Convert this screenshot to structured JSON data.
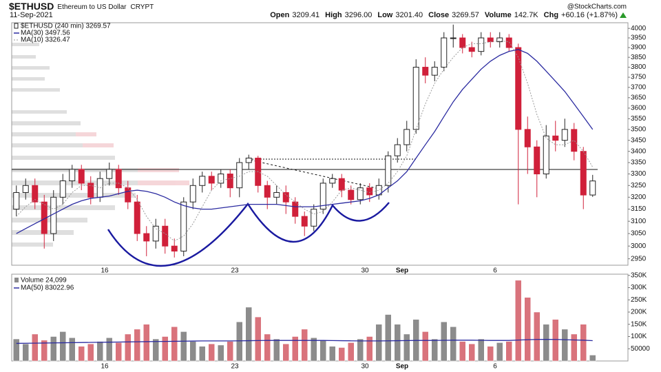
{
  "header": {
    "symbol": "$ETHUSD",
    "name": "Ethereum to US Dollar",
    "exchange": "CRYPT",
    "date": "11-Sep-2021",
    "source": "@StockCharts.com",
    "quote": [
      {
        "label": "Open",
        "value": "3209.41"
      },
      {
        "label": "High",
        "value": "3296.00"
      },
      {
        "label": "Low",
        "value": "3201.40"
      },
      {
        "label": "Close",
        "value": "3269.57"
      },
      {
        "label": "Volume",
        "value": "142.7K"
      },
      {
        "label": "Chg",
        "value": "+60.16 (+1.87%)"
      }
    ]
  },
  "chart_data": {
    "type": "candlestick",
    "legend": "$ETHUSD (240 min) 3269.57",
    "categories": [
      null,
      null,
      null,
      null,
      null,
      null,
      null,
      null,
      null,
      null,
      "16",
      null,
      null,
      null,
      null,
      null,
      null,
      null,
      null,
      null,
      null,
      null,
      null,
      null,
      "23",
      null,
      null,
      null,
      null,
      null,
      null,
      null,
      null,
      null,
      null,
      null,
      null,
      null,
      "30",
      null,
      null,
      null,
      "Sep",
      null,
      null,
      null,
      null,
      null,
      null,
      null,
      null,
      null,
      "6",
      null,
      null,
      null,
      null,
      null,
      null,
      null,
      null,
      null,
      null
    ],
    "open": [
      3150,
      3220,
      3250,
      3180,
      3050,
      3200,
      3270,
      3320,
      3260,
      3200,
      3280,
      3320,
      3240,
      3180,
      3050,
      3020,
      3080,
      3000,
      2980,
      3180,
      3250,
      3290,
      3260,
      3300,
      3240,
      3350,
      3370,
      3250,
      3200,
      3220,
      3180,
      3120,
      3080,
      3150,
      3260,
      3280,
      3230,
      3190,
      3240,
      3210,
      3250,
      3380,
      3430,
      3500,
      3800,
      3760,
      3800,
      3950,
      3950,
      3900,
      3880,
      3950,
      3930,
      3950,
      3900,
      3500,
      3420,
      3300,
      3470,
      3450,
      3500,
      3400,
      3209.41
    ],
    "high": [
      3250,
      3280,
      3280,
      3210,
      3230,
      3300,
      3340,
      3340,
      3290,
      3310,
      3350,
      3340,
      3270,
      3210,
      3080,
      3110,
      3110,
      3030,
      3200,
      3280,
      3310,
      3310,
      3320,
      3320,
      3370,
      3385,
      3380,
      3270,
      3250,
      3250,
      3200,
      3140,
      3170,
      3280,
      3300,
      3300,
      3250,
      3260,
      3260,
      3280,
      3400,
      3460,
      3540,
      3840,
      3850,
      3830,
      3980,
      4020,
      3970,
      3930,
      3980,
      3980,
      3980,
      3970,
      3920,
      3560,
      3450,
      3520,
      3540,
      3550,
      3530,
      3420,
      3296
    ],
    "low": [
      3120,
      3190,
      3150,
      2990,
      3020,
      3170,
      3240,
      3230,
      3170,
      3180,
      3250,
      3210,
      3150,
      3020,
      2960,
      2990,
      2970,
      2955,
      2960,
      3150,
      3220,
      3230,
      3240,
      3200,
      3200,
      3320,
      3220,
      3150,
      3170,
      3130,
      3090,
      3040,
      3060,
      3130,
      3240,
      3200,
      3170,
      3170,
      3180,
      3190,
      3220,
      3350,
      3400,
      3480,
      3720,
      3730,
      3780,
      3900,
      3870,
      3850,
      3860,
      3900,
      3900,
      3880,
      3170,
      3300,
      3200,
      3280,
      3400,
      3420,
      3360,
      3150,
      3201.4
    ],
    "close": [
      3220,
      3250,
      3180,
      3050,
      3200,
      3270,
      3320,
      3260,
      3200,
      3280,
      3320,
      3240,
      3180,
      3050,
      3020,
      3080,
      3000,
      2980,
      3180,
      3250,
      3290,
      3260,
      3300,
      3240,
      3350,
      3370,
      3250,
      3200,
      3220,
      3180,
      3120,
      3080,
      3150,
      3260,
      3280,
      3230,
      3190,
      3240,
      3210,
      3250,
      3380,
      3430,
      3500,
      3800,
      3760,
      3800,
      3950,
      3950,
      3900,
      3880,
      3950,
      3930,
      3950,
      3900,
      3500,
      3420,
      3300,
      3470,
      3450,
      3500,
      3400,
      3209.41,
      3269.57
    ],
    "up_color": "#ffffff",
    "down_color": "#d0203a",
    "log_scale": true,
    "ylim": [
      2925,
      4030
    ],
    "yticks": [
      2950,
      3000,
      3050,
      3100,
      3150,
      3200,
      3250,
      3300,
      3350,
      3400,
      3450,
      3500,
      3550,
      3600,
      3650,
      3700,
      3750,
      3800,
      3850,
      3900,
      3950,
      4000
    ],
    "overlays": [
      {
        "name": "MA(30) 3497.56",
        "color": "#2a2aa0",
        "dashed": false,
        "values": [
          3050,
          3070,
          3090,
          3110,
          3130,
          3150,
          3170,
          3185,
          3195,
          3200,
          3205,
          3215,
          3225,
          3230,
          3225,
          3215,
          3200,
          3180,
          3165,
          3155,
          3150,
          3150,
          3155,
          3160,
          3165,
          3170,
          3170,
          3170,
          3170,
          3165,
          3160,
          3160,
          3160,
          3165,
          3170,
          3175,
          3180,
          3185,
          3195,
          3210,
          3240,
          3270,
          3310,
          3370,
          3430,
          3490,
          3560,
          3630,
          3690,
          3740,
          3790,
          3830,
          3860,
          3880,
          3890,
          3870,
          3830,
          3780,
          3730,
          3680,
          3620,
          3560,
          3500
        ]
      },
      {
        "name": "MA(10) 3326.47",
        "color": "#999999",
        "dashed": true,
        "values": [
          3120,
          3160,
          3190,
          3170,
          3150,
          3170,
          3220,
          3250,
          3250,
          3240,
          3260,
          3260,
          3240,
          3190,
          3120,
          3070,
          3050,
          3020,
          3040,
          3090,
          3160,
          3230,
          3270,
          3280,
          3290,
          3310,
          3310,
          3290,
          3250,
          3210,
          3180,
          3150,
          3130,
          3140,
          3180,
          3230,
          3240,
          3230,
          3220,
          3230,
          3260,
          3310,
          3380,
          3500,
          3620,
          3720,
          3790,
          3850,
          3900,
          3920,
          3920,
          3930,
          3935,
          3930,
          3850,
          3720,
          3570,
          3460,
          3430,
          3430,
          3450,
          3400,
          3330
        ]
      }
    ],
    "volume": {
      "legend": "Volume 24,099",
      "values": [
        90000,
        70000,
        110000,
        85000,
        100000,
        120000,
        95000,
        60000,
        70000,
        80000,
        95000,
        75000,
        110000,
        130000,
        150000,
        90000,
        100000,
        140000,
        120000,
        80000,
        60000,
        70000,
        65000,
        80000,
        160000,
        220000,
        180000,
        110000,
        90000,
        70000,
        100000,
        130000,
        95000,
        85000,
        60000,
        55000,
        75000,
        90000,
        100000,
        150000,
        190000,
        150000,
        110000,
        170000,
        120000,
        90000,
        160000,
        140000,
        80000,
        70000,
        90000,
        60000,
        75000,
        80000,
        330000,
        260000,
        200000,
        150000,
        170000,
        130000,
        110000,
        150000,
        24099
      ],
      "up_color": "#8c8c8c",
      "down_color": "#d9737c",
      "ylim": [
        0,
        355000
      ],
      "yticks": [
        50000,
        {
          "value": 100000,
          "label": "100K"
        },
        {
          "value": 150000,
          "label": "150K"
        },
        {
          "value": 200000,
          "label": "200K"
        },
        {
          "value": 250000,
          "label": "250K"
        },
        {
          "value": 300000,
          "label": "300K"
        },
        {
          "value": 350000,
          "label": "350K"
        }
      ],
      "ma": {
        "name": "MA(50) 83022.96",
        "color": "#2a2aa0",
        "values": [
          72000,
          72500,
          73000,
          73500,
          74000,
          74500,
          75000,
          75500,
          76000,
          76500,
          77000,
          77500,
          78000,
          78500,
          79000,
          79500,
          80000,
          80500,
          81000,
          81500,
          82000,
          82000,
          82000,
          82000,
          82500,
          83000,
          83500,
          84000,
          84000,
          84000,
          84000,
          84000,
          84000,
          84000,
          83500,
          83000,
          82500,
          82000,
          82000,
          82000,
          82500,
          83000,
          83500,
          84000,
          84000,
          84000,
          84500,
          85000,
          85000,
          85000,
          84500,
          84000,
          84000,
          84000,
          85500,
          87000,
          88000,
          88500,
          88000,
          87000,
          86000,
          85000,
          83022.96
        ]
      }
    }
  }
}
